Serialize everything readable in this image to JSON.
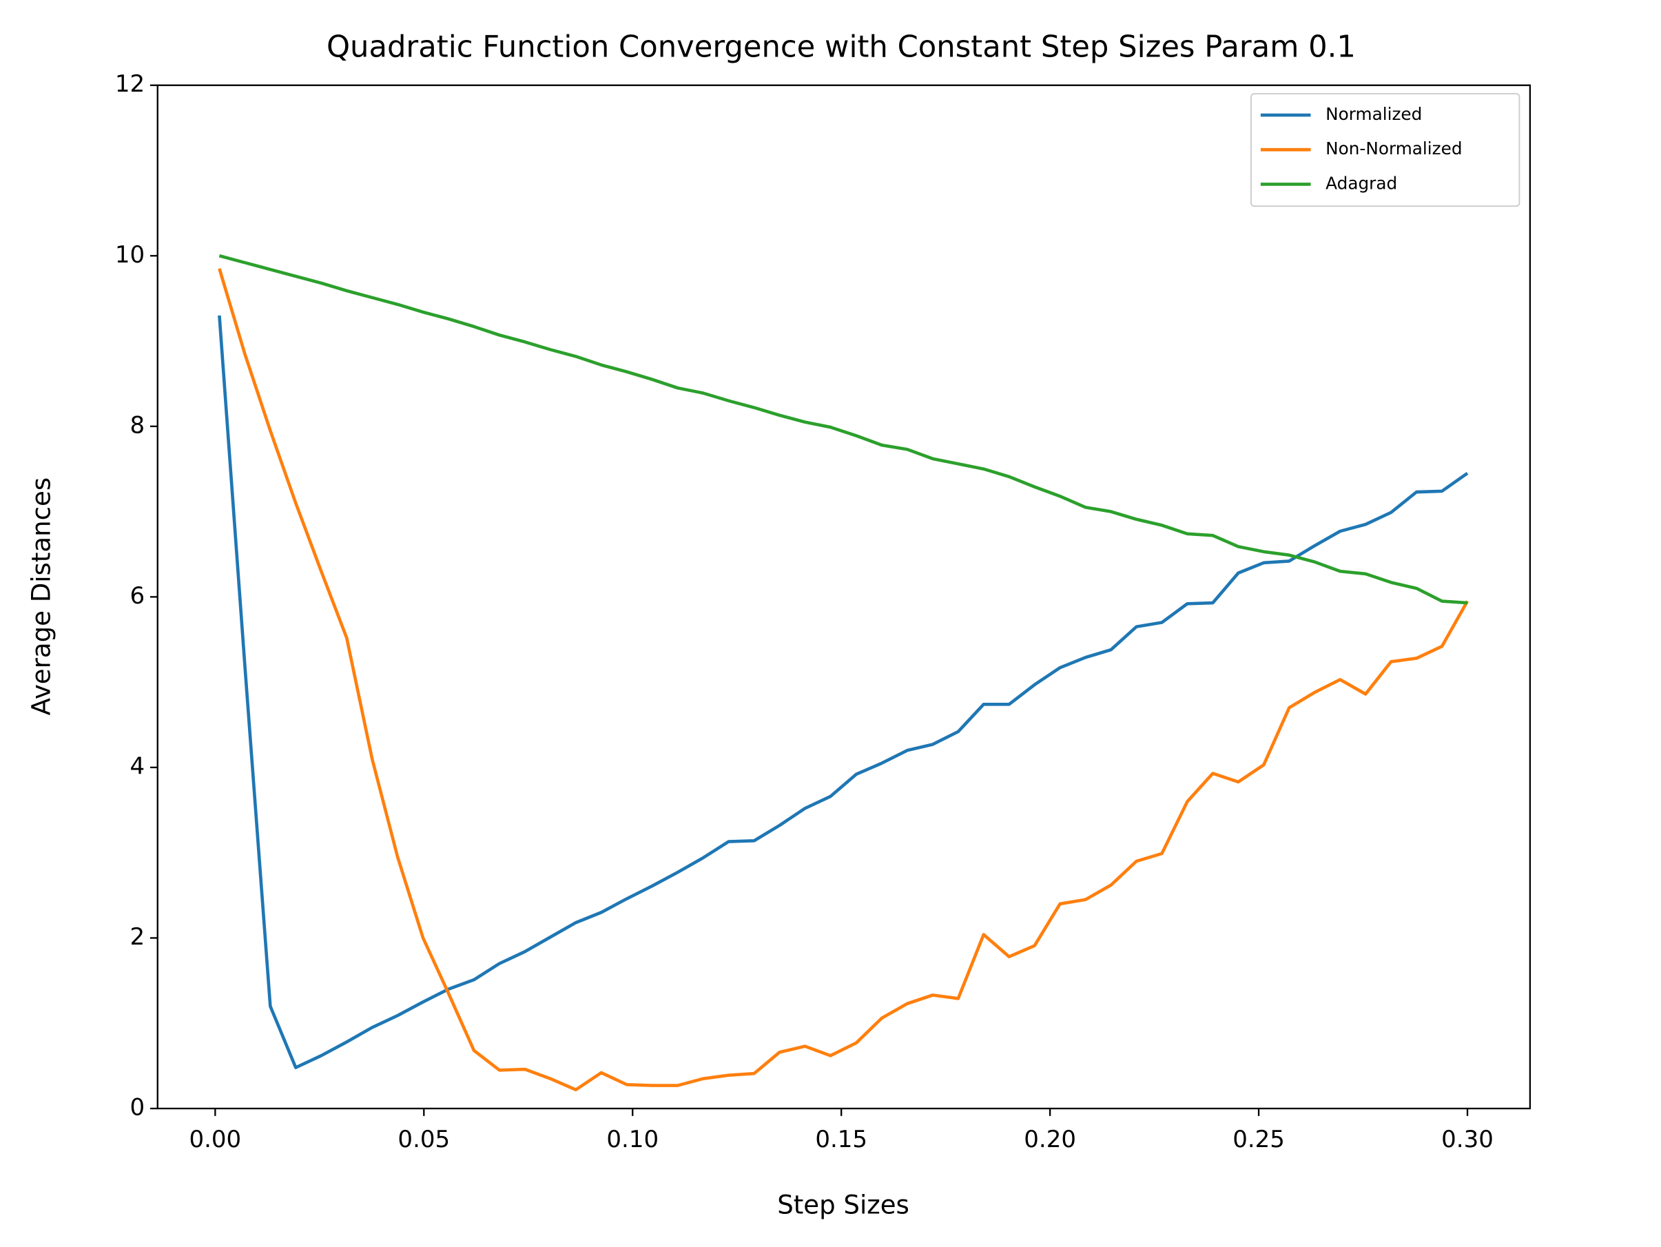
{
  "chart_data": {
    "type": "line",
    "title": "Quadratic Function Convergence with Constant Step Sizes Param 0.1",
    "xlabel": "Step Sizes",
    "ylabel": "Average Distances",
    "x": [
      0.001,
      0.0071,
      0.0132,
      0.0193,
      0.0254,
      0.0315,
      0.0376,
      0.0437,
      0.0498,
      0.0559,
      0.062,
      0.0681,
      0.0742,
      0.0803,
      0.0864,
      0.0925,
      0.0986,
      0.1047,
      0.1108,
      0.1169,
      0.123,
      0.1291,
      0.1352,
      0.1413,
      0.1474,
      0.1536,
      0.1597,
      0.1658,
      0.1719,
      0.178,
      0.1841,
      0.1902,
      0.1963,
      0.2024,
      0.2085,
      0.2146,
      0.2207,
      0.2268,
      0.2329,
      0.239,
      0.2451,
      0.2512,
      0.2573,
      0.2634,
      0.2695,
      0.2756,
      0.2817,
      0.2878,
      0.2939,
      0.3
    ],
    "series": [
      {
        "name": "Normalized",
        "color": "#1f77b4",
        "values": [
          9.3,
          5.2,
          1.2,
          0.48,
          0.62,
          0.78,
          0.95,
          1.09,
          1.25,
          1.4,
          1.51,
          1.7,
          1.84,
          2.01,
          2.18,
          2.3,
          2.46,
          2.61,
          2.77,
          2.94,
          3.13,
          3.14,
          3.32,
          3.52,
          3.66,
          3.92,
          4.05,
          4.2,
          4.27,
          4.42,
          4.74,
          4.74,
          4.97,
          5.17,
          5.29,
          5.38,
          5.65,
          5.7,
          5.92,
          5.93,
          6.28,
          6.4,
          6.42,
          6.6,
          6.77,
          6.85,
          6.99,
          7.23,
          7.24,
          7.45
        ]
      },
      {
        "name": "Non-Normalized",
        "color": "#ff7f0e",
        "values": [
          9.85,
          8.85,
          7.95,
          7.1,
          6.3,
          5.52,
          4.1,
          2.95,
          2.0,
          1.35,
          0.68,
          0.45,
          0.46,
          0.35,
          0.22,
          0.42,
          0.28,
          0.27,
          0.27,
          0.35,
          0.39,
          0.41,
          0.66,
          0.73,
          0.62,
          0.77,
          1.06,
          1.23,
          1.33,
          1.29,
          2.04,
          1.78,
          1.91,
          2.4,
          2.45,
          2.62,
          2.9,
          2.99,
          3.6,
          3.93,
          3.83,
          4.03,
          4.7,
          4.88,
          5.03,
          4.86,
          5.24,
          5.28,
          5.42,
          5.95
        ]
      },
      {
        "name": "Adagrad",
        "color": "#2ca02c",
        "values": [
          10.0,
          9.92,
          9.84,
          9.76,
          9.68,
          9.59,
          9.51,
          9.43,
          9.34,
          9.26,
          9.17,
          9.07,
          8.99,
          8.9,
          8.82,
          8.72,
          8.64,
          8.55,
          8.45,
          8.39,
          8.3,
          8.22,
          8.13,
          8.05,
          7.99,
          7.89,
          7.78,
          7.73,
          7.62,
          7.56,
          7.5,
          7.41,
          7.29,
          7.18,
          7.05,
          7.0,
          6.91,
          6.84,
          6.74,
          6.72,
          6.59,
          6.53,
          6.49,
          6.41,
          6.3,
          6.27,
          6.17,
          6.1,
          5.95,
          5.93
        ]
      }
    ],
    "xlim": [
      -0.0138,
      0.315
    ],
    "xticks": [
      {
        "value": 0,
        "label": "0.00"
      },
      {
        "value": 0.05,
        "label": "0.05"
      },
      {
        "value": 0.1,
        "label": "0.10"
      },
      {
        "value": 0.15,
        "label": "0.15"
      },
      {
        "value": 0.2,
        "label": "0.20"
      },
      {
        "value": 0.25,
        "label": "0.25"
      },
      {
        "value": 0.3,
        "label": "0.30"
      }
    ],
    "ylim": [
      0,
      12
    ],
    "yticks": [
      0,
      2,
      4,
      6,
      8,
      10,
      12
    ],
    "grid": false,
    "legend": "upper right"
  }
}
